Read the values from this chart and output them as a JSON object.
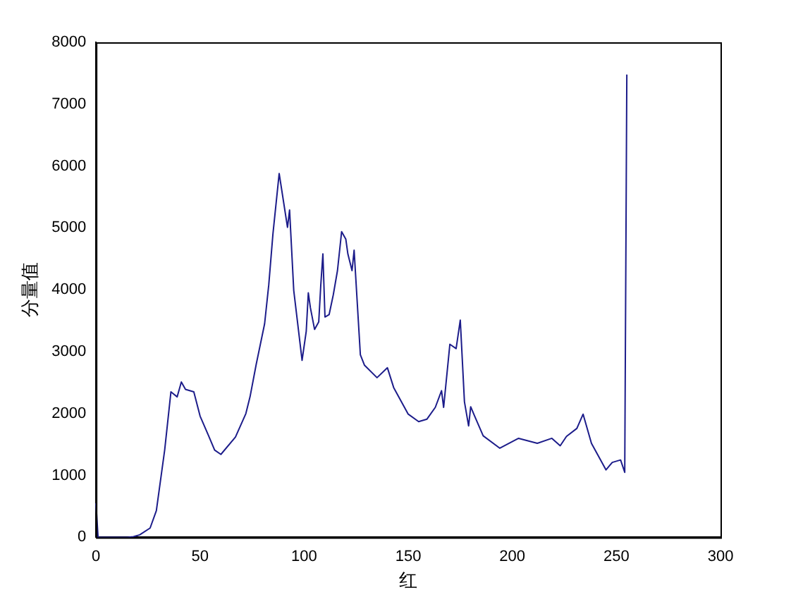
{
  "chart_data": {
    "type": "line",
    "xlabel": "红",
    "ylabel": "分量值",
    "x": [
      0,
      1,
      15,
      18,
      21,
      26,
      29,
      33,
      36,
      39,
      41,
      43,
      47,
      50,
      54,
      57,
      60,
      67,
      72,
      74,
      77,
      81,
      83,
      85,
      88,
      92,
      93,
      95,
      99,
      101,
      102,
      103,
      105,
      107,
      108,
      109,
      110,
      112,
      114,
      116,
      118,
      120,
      121,
      123,
      124,
      127,
      129,
      135,
      140,
      143,
      150,
      155,
      159,
      163,
      166,
      167,
      170,
      173,
      175,
      177,
      179,
      180,
      182,
      186,
      194,
      203,
      212,
      219,
      223,
      226,
      231,
      234,
      238,
      245,
      248,
      252,
      254,
      255
    ],
    "series": [
      {
        "color": "#1c1c8a",
        "values": [
          550,
          0,
          0,
          10,
          40,
          150,
          430,
          1410,
          2350,
          2270,
          2510,
          2390,
          2350,
          1960,
          1650,
          1410,
          1340,
          1620,
          2000,
          2270,
          2800,
          3450,
          4080,
          4900,
          5880,
          5010,
          5290,
          3990,
          2860,
          3330,
          3950,
          3710,
          3360,
          3480,
          4080,
          4580,
          3560,
          3600,
          3920,
          4310,
          4940,
          4820,
          4580,
          4310,
          4640,
          2950,
          2780,
          2580,
          2740,
          2420,
          1990,
          1870,
          1910,
          2100,
          2370,
          2100,
          3120,
          3050,
          3510,
          2190,
          1800,
          2110,
          1950,
          1640,
          1440,
          1600,
          1520,
          1600,
          1480,
          1630,
          1760,
          1990,
          1520,
          1090,
          1210,
          1250,
          1050,
          7480
        ]
      }
    ],
    "xlim": [
      0,
      300
    ],
    "xticks": [
      0,
      50,
      100,
      150,
      200,
      250,
      300
    ],
    "ylim": [
      0,
      8000
    ],
    "yticks": [
      0,
      1000,
      2000,
      3000,
      4000,
      5000,
      6000,
      7000,
      8000
    ],
    "grid": false,
    "legend": false,
    "marker": "none",
    "line_style": "solid"
  }
}
